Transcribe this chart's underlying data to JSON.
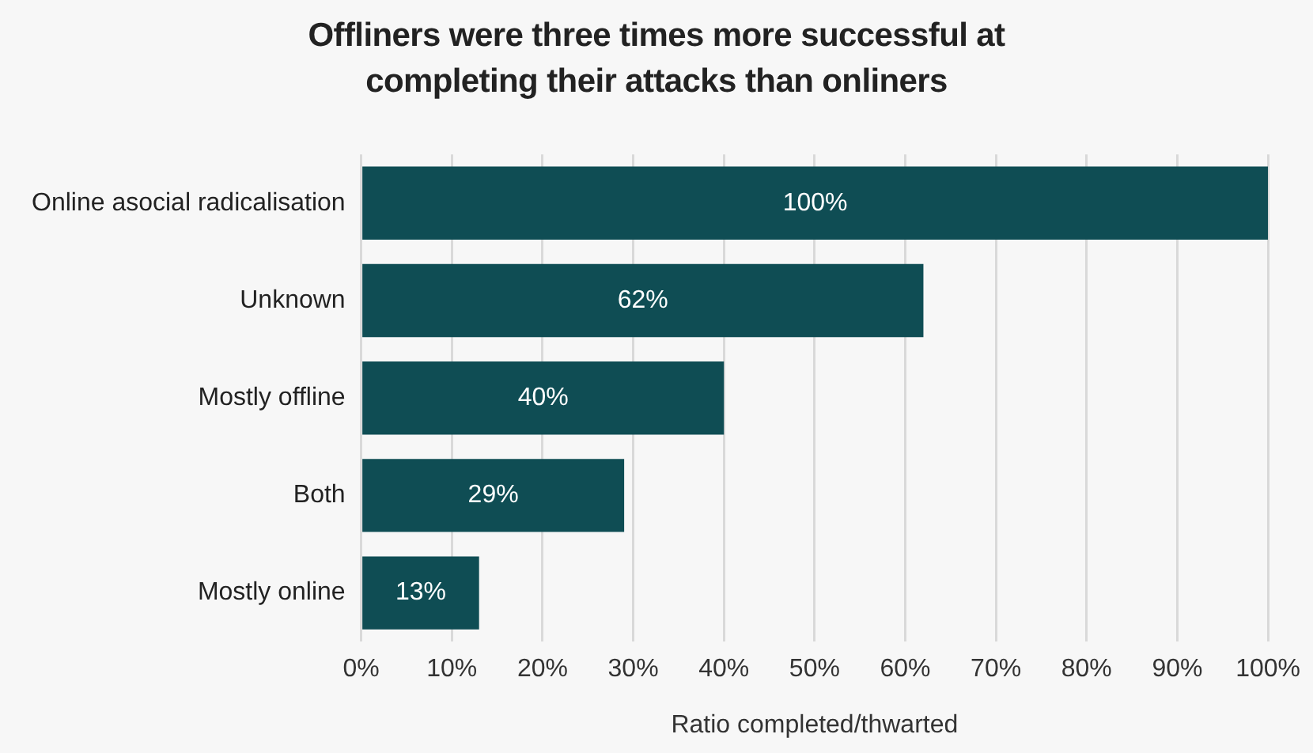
{
  "chart_data": {
    "type": "bar",
    "orientation": "horizontal",
    "title": "Offliners were three times more successful at completing their attacks than onliners",
    "xlabel": "Ratio completed/thwarted",
    "categories": [
      "Online asocial radicalisation",
      "Unknown",
      "Mostly offline",
      "Both",
      "Mostly online"
    ],
    "values": [
      100,
      62,
      40,
      29,
      13
    ],
    "value_labels": [
      "100%",
      "62%",
      "40%",
      "29%",
      "13%"
    ],
    "color": "#0f4d54",
    "xlim": [
      0,
      100
    ],
    "xticks": [
      {
        "value": 0,
        "label": "0%"
      },
      {
        "value": 10,
        "label": "10%"
      },
      {
        "value": 20,
        "label": "20%"
      },
      {
        "value": 30,
        "label": "30%"
      },
      {
        "value": 40,
        "label": "40%"
      },
      {
        "value": 50,
        "label": "50%"
      },
      {
        "value": 60,
        "label": "60%"
      },
      {
        "value": 70,
        "label": "70%"
      },
      {
        "value": 80,
        "label": "80%"
      },
      {
        "value": 90,
        "label": "90%"
      },
      {
        "value": 100,
        "label": "100%"
      }
    ],
    "grid": "x",
    "legend": false
  }
}
